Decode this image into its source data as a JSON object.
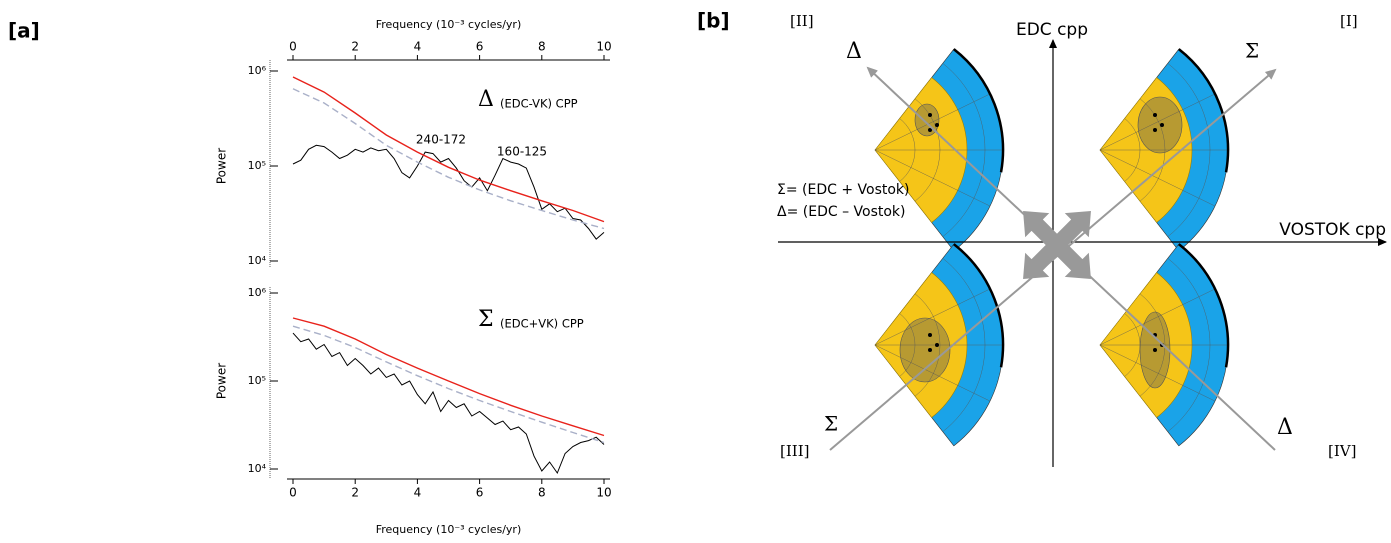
{
  "panel_labels": [
    "[a]",
    "[b]"
  ],
  "chart_data": [
    {
      "type": "line",
      "title": "Δ",
      "subtitle": "(EDC-VK) CPP",
      "xlabel": "Frequency (10⁻³ cycles/yr)",
      "ylabel": "Power",
      "xaxis_position": "top",
      "log_y": true,
      "xlim": [
        0,
        10
      ],
      "xticks": [
        0,
        2,
        4,
        6,
        8,
        10
      ],
      "ylim": [
        10000,
        1000000
      ],
      "yticks": [
        {
          "value": 10000,
          "label": "10⁴"
        },
        {
          "value": 100000,
          "label": "10⁵"
        },
        {
          "value": 1000000,
          "label": "10⁶"
        }
      ],
      "annotations": [
        "240-172",
        "160-125"
      ],
      "series": [
        {
          "color": "#000000",
          "dashed": false,
          "x": [
            0,
            0.25,
            0.5,
            0.75,
            1,
            1.25,
            1.5,
            1.75,
            2,
            2.25,
            2.5,
            2.75,
            3,
            3.25,
            3.5,
            3.75,
            4,
            4.25,
            4.5,
            4.75,
            5,
            5.25,
            5.5,
            5.75,
            6,
            6.25,
            6.5,
            6.75,
            7,
            7.25,
            7.5,
            7.75,
            8,
            8.25,
            8.5,
            8.75,
            9,
            9.25,
            9.5,
            9.75,
            10
          ],
          "values": [
            105000,
            115000,
            150000,
            165000,
            160000,
            140000,
            120000,
            130000,
            150000,
            140000,
            155000,
            145000,
            150000,
            120000,
            85000,
            75000,
            100000,
            140000,
            135000,
            110000,
            120000,
            95000,
            70000,
            60000,
            75000,
            55000,
            80000,
            120000,
            110000,
            105000,
            95000,
            60000,
            35000,
            40000,
            33000,
            36000,
            28000,
            27000,
            22000,
            17000,
            20000
          ]
        },
        {
          "color": "#e8221b",
          "dashed": false,
          "x": [
            0,
            1,
            2,
            3,
            4,
            5,
            6,
            7,
            8,
            9,
            10
          ],
          "values": [
            865000,
            600000,
            361000,
            212000,
            140000,
            97000,
            71000,
            55000,
            43000,
            34000,
            26000
          ]
        },
        {
          "color": "#a9b0c8",
          "dashed": true,
          "x": [
            0,
            1,
            2,
            3,
            4,
            5,
            6,
            7,
            8,
            9,
            10
          ],
          "values": [
            650000,
            460000,
            280000,
            165000,
            110000,
            76000,
            56000,
            43000,
            34000,
            27000,
            22000
          ]
        }
      ]
    },
    {
      "type": "line",
      "title": "Σ",
      "subtitle": "(EDC+VK) CPP",
      "xlabel": "Frequency (10⁻³ cycles/yr)",
      "ylabel": "Power",
      "xaxis_position": "bottom",
      "log_y": true,
      "xlim": [
        0,
        10
      ],
      "xticks": [
        0,
        2,
        4,
        6,
        8,
        10
      ],
      "ylim": [
        10000,
        1000000
      ],
      "yticks": [
        {
          "value": 10000,
          "label": "10⁴"
        },
        {
          "value": 100000,
          "label": "10⁵"
        },
        {
          "value": 1000000,
          "label": "10⁶"
        }
      ],
      "series": [
        {
          "color": "#000000",
          "dashed": false,
          "x": [
            0,
            0.25,
            0.5,
            0.75,
            1,
            1.25,
            1.5,
            1.75,
            2,
            2.25,
            2.5,
            2.75,
            3,
            3.25,
            3.5,
            3.75,
            4,
            4.25,
            4.5,
            4.75,
            5,
            5.25,
            5.5,
            5.75,
            6,
            6.25,
            6.5,
            6.75,
            7,
            7.25,
            7.5,
            7.75,
            8,
            8.25,
            8.5,
            8.75,
            9,
            9.25,
            9.5,
            9.75,
            10
          ],
          "values": [
            350000,
            280000,
            300000,
            230000,
            260000,
            190000,
            210000,
            150000,
            180000,
            150000,
            120000,
            140000,
            110000,
            120000,
            90000,
            100000,
            70000,
            55000,
            75000,
            45000,
            60000,
            50000,
            55000,
            40000,
            45000,
            38000,
            32000,
            35000,
            28000,
            30000,
            25000,
            14000,
            9500,
            12000,
            9000,
            15000,
            18000,
            20000,
            21000,
            23000,
            19000
          ]
        },
        {
          "color": "#e8221b",
          "dashed": false,
          "x": [
            0,
            1,
            2,
            3,
            4,
            5,
            6,
            7,
            8,
            9,
            10
          ],
          "values": [
            520000,
            420000,
            300000,
            200000,
            140000,
            100000,
            72000,
            53000,
            40000,
            31000,
            24000
          ]
        },
        {
          "color": "#a9b0c8",
          "dashed": true,
          "x": [
            0,
            1,
            2,
            3,
            4,
            5,
            6,
            7,
            8,
            9,
            10
          ],
          "values": [
            420000,
            330000,
            240000,
            165000,
            115000,
            82000,
            60000,
            45000,
            34000,
            26000,
            20000
          ]
        }
      ]
    }
  ],
  "diagram": {
    "quadrants": [
      "[I]",
      "[II]",
      "[III]",
      "[IV]"
    ],
    "y_axis": "EDC cpp",
    "x_axis": "VOSTOK cpp",
    "arrow_labels": [
      "Δ",
      "Σ",
      "Σ",
      "Δ"
    ],
    "legend": [
      "Σ= (EDC + Vostok)",
      "Δ= (EDC – Vostok)"
    ]
  }
}
